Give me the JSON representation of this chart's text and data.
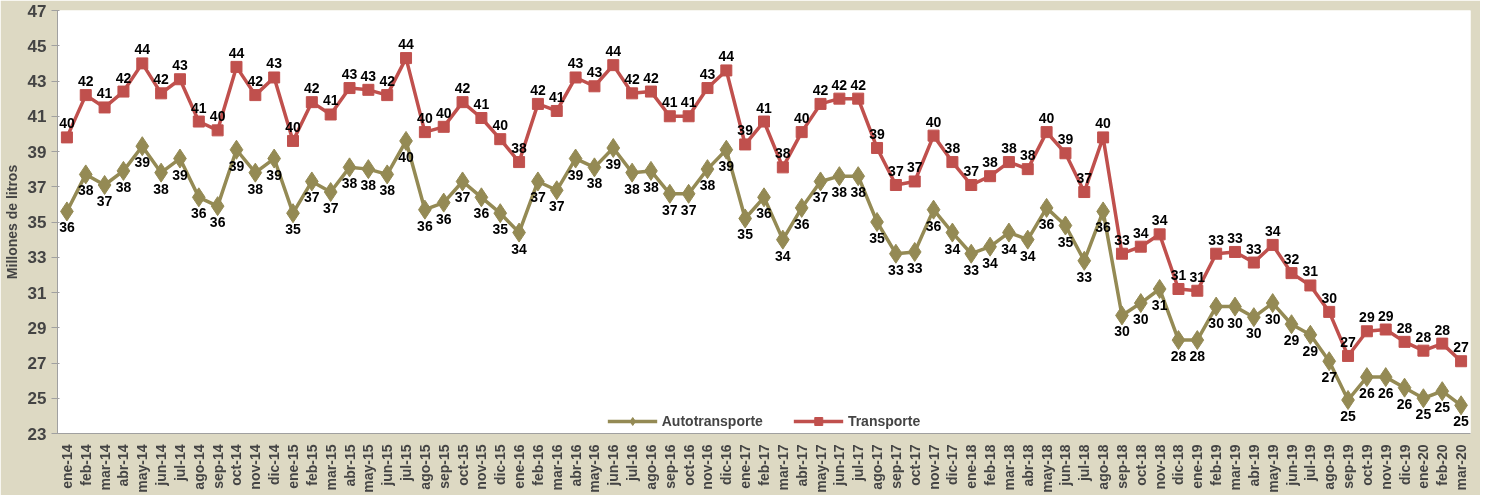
{
  "chart_data": {
    "type": "line",
    "ylabel": "Millones de litros",
    "categories": [
      "ene-14",
      "feb-14",
      "mar-14",
      "abr-14",
      "may-14",
      "jun-14",
      "jul-14",
      "ago-14",
      "sep-14",
      "oct-14",
      "nov-14",
      "dic-14",
      "ene-15",
      "feb-15",
      "mar-15",
      "abr-15",
      "may-15",
      "jun-15",
      "jul-15",
      "ago-15",
      "sep-15",
      "oct-15",
      "nov-15",
      "dic-15",
      "ene-16",
      "feb-16",
      "mar-16",
      "abr-16",
      "may-16",
      "jun-16",
      "jul-16",
      "ago-16",
      "sep-16",
      "oct-16",
      "nov-16",
      "dic-16",
      "ene-17",
      "feb-17",
      "mar-17",
      "abr-17",
      "may-17",
      "jun-17",
      "jul-17",
      "ago-17",
      "sep-17",
      "oct-17",
      "nov-17",
      "dic-17",
      "ene-18",
      "feb-18",
      "mar-18",
      "abr-18",
      "may-18",
      "jun-18",
      "jul-18",
      "ago-18",
      "sep-18",
      "oct-18",
      "nov-18",
      "dic-18",
      "ene-19",
      "feb-19",
      "mar-19",
      "abr-19",
      "may-19",
      "jun-19",
      "jul-19",
      "ago-19",
      "sep-19",
      "oct-19",
      "nov-19",
      "dic-19",
      "ene-20",
      "feb-20",
      "mar-20"
    ],
    "series": [
      {
        "name": "Autotransporte",
        "color": "#948a54",
        "marker": "diamond",
        "values": [
          35.6,
          37.7,
          37.1,
          37.9,
          39.3,
          37.8,
          38.6,
          36.4,
          35.9,
          39.1,
          37.8,
          38.6,
          35.5,
          37.3,
          36.7,
          38.1,
          38.0,
          37.7,
          39.6,
          35.7,
          36.1,
          37.3,
          36.4,
          35.5,
          34.4,
          37.3,
          36.8,
          38.6,
          38.1,
          39.2,
          37.8,
          37.9,
          36.6,
          36.6,
          38.0,
          39.1,
          35.2,
          36.4,
          34.0,
          35.8,
          37.3,
          37.6,
          37.6,
          35.0,
          33.2,
          33.3,
          35.7,
          34.4,
          33.2,
          33.6,
          34.4,
          34.0,
          35.8,
          34.8,
          32.8,
          35.6,
          29.7,
          30.4,
          31.2,
          28.3,
          28.3,
          30.2,
          30.2,
          29.6,
          30.4,
          29.2,
          28.6,
          27.1,
          24.9,
          26.2,
          26.2,
          25.6,
          25.0,
          25.4,
          24.6
        ],
        "value_labels": [
          "36",
          "38",
          "37",
          "38",
          "39",
          "38",
          "39",
          "36",
          "36",
          "39",
          "38",
          "39",
          "35",
          "37",
          "37",
          "38",
          "38",
          "38",
          "40",
          "36",
          "36",
          "37",
          "36",
          "35",
          "34",
          "37",
          "37",
          "39",
          "38",
          "39",
          "38",
          "38",
          "37",
          "37",
          "38",
          "39",
          "35",
          "36",
          "34",
          "36",
          "37",
          "38",
          "38",
          "35",
          "33",
          "33",
          "36",
          "34",
          "33",
          "34",
          "34",
          "34",
          "36",
          "35",
          "33",
          "36",
          "30",
          "30",
          "31",
          "28",
          "28",
          "30",
          "30",
          "30",
          "30",
          "29",
          "29",
          "27",
          "25",
          "26",
          "26",
          "26",
          "25",
          "25",
          "25"
        ]
      },
      {
        "name": "Transporte",
        "color": "#c0504d",
        "marker": "square",
        "values": [
          39.8,
          42.2,
          41.5,
          42.4,
          44.0,
          42.3,
          43.1,
          40.7,
          40.2,
          43.8,
          42.2,
          43.2,
          39.6,
          41.8,
          41.1,
          42.6,
          42.5,
          42.2,
          44.3,
          40.1,
          40.4,
          41.8,
          40.9,
          39.7,
          38.4,
          41.7,
          41.3,
          43.2,
          42.7,
          43.9,
          42.3,
          42.4,
          41.0,
          41.0,
          42.6,
          43.6,
          39.4,
          40.7,
          38.1,
          40.1,
          41.7,
          42.0,
          42.0,
          39.2,
          37.1,
          37.3,
          39.9,
          38.4,
          37.1,
          37.6,
          38.4,
          38.0,
          40.1,
          38.9,
          36.7,
          39.8,
          33.2,
          33.6,
          34.3,
          31.2,
          31.1,
          33.2,
          33.3,
          32.7,
          33.7,
          32.1,
          31.4,
          29.9,
          27.4,
          28.8,
          28.9,
          28.2,
          27.7,
          28.1,
          27.1
        ],
        "value_labels": [
          "40",
          "42",
          "41",
          "42",
          "44",
          "42",
          "43",
          "41",
          "40",
          "44",
          "42",
          "43",
          "40",
          "42",
          "41",
          "43",
          "43",
          "42",
          "44",
          "40",
          "40",
          "42",
          "41",
          "40",
          "38",
          "42",
          "41",
          "43",
          "43",
          "44",
          "42",
          "42",
          "41",
          "41",
          "43",
          "44",
          "39",
          "41",
          "38",
          "40",
          "42",
          "42",
          "42",
          "39",
          "37",
          "37",
          "40",
          "38",
          "37",
          "38",
          "38",
          "38",
          "40",
          "39",
          "37",
          "40",
          "33",
          "34",
          "34",
          "31",
          "31",
          "33",
          "33",
          "33",
          "34",
          "32",
          "31",
          "30",
          "27",
          "29",
          "29",
          "28",
          "28",
          "28",
          "27"
        ]
      }
    ],
    "ylim": [
      23,
      47
    ],
    "yticks": [
      23,
      25,
      27,
      29,
      31,
      33,
      35,
      37,
      39,
      41,
      43,
      45,
      47
    ],
    "grid": false,
    "legend": "bottom",
    "line_style": "solid"
  }
}
